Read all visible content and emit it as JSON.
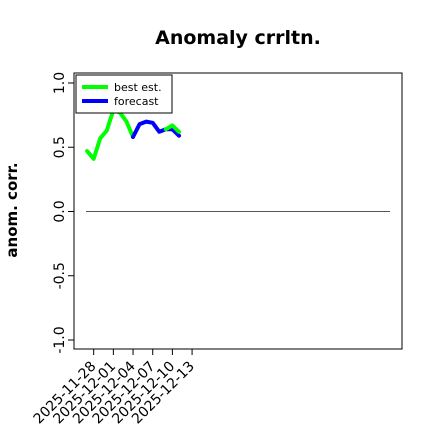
{
  "chart_data": {
    "type": "line",
    "title": "Anomaly crrltn.",
    "ylabel": "anom. corr.",
    "xlabel": "",
    "ylim": [
      -1.0,
      1.0
    ],
    "xlim": [
      "2025-11-25",
      "2026-01-14"
    ],
    "yticks": [
      -1.0,
      -0.5,
      0.0,
      0.5,
      1.0
    ],
    "ytick_labels": [
      "-1.0",
      "-0.5",
      "0.0",
      "0.5",
      "1.0"
    ],
    "xticks": [
      "2025-11-28",
      "2025-12-01",
      "2025-12-04",
      "2025-12-07",
      "2025-12-10",
      "2025-12-13"
    ],
    "highlighted_xtick": "2025-12-04",
    "highlight_color": "#1a8a1a",
    "reference_line": 0.0,
    "legend_position": "top-left",
    "series": [
      {
        "name": "best est.",
        "color": "#00ff00",
        "x": [
          "2025-11-27",
          "2025-11-28",
          "2025-11-29",
          "2025-11-30",
          "2025-12-01",
          "2025-12-02",
          "2025-12-03",
          "2025-12-04"
        ],
        "y": [
          0.47,
          0.41,
          0.57,
          0.63,
          0.79,
          0.77,
          0.7,
          0.58
        ]
      },
      {
        "name": "forecast",
        "color": "#0000ff",
        "x": [
          "2025-12-04",
          "2025-12-05",
          "2025-12-06",
          "2025-12-07",
          "2025-12-08",
          "2025-12-09",
          "2025-12-10",
          "2025-12-11"
        ],
        "y": [
          0.58,
          0.68,
          0.7,
          0.69,
          0.62,
          0.64,
          0.64,
          0.59
        ]
      },
      {
        "name": "",
        "color": "#00ff00",
        "x": [
          "2025-12-09",
          "2025-12-10",
          "2025-12-11"
        ],
        "y": [
          0.64,
          0.67,
          0.62
        ]
      }
    ]
  }
}
